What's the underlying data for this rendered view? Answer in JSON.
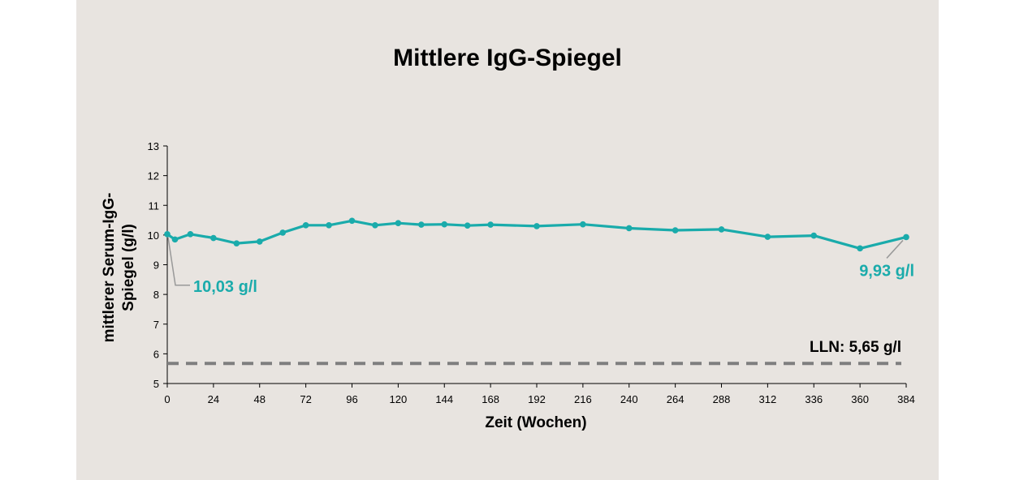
{
  "chart_data": {
    "type": "line",
    "title": "Mittlere IgG-Spiegel",
    "xlabel": "Zeit (Wochen)",
    "ylabel_lines": [
      "mittlerer Serum-IgG-",
      "Spiegel (g/l)"
    ],
    "xlim": [
      0,
      384
    ],
    "ylim": [
      5,
      13
    ],
    "xticks": [
      0,
      24,
      48,
      72,
      96,
      120,
      144,
      168,
      192,
      216,
      240,
      264,
      288,
      312,
      336,
      360,
      384
    ],
    "yticks": [
      5,
      6,
      7,
      8,
      9,
      10,
      11,
      12,
      13
    ],
    "grid": false,
    "series": [
      {
        "color": "#1aabab",
        "x": [
          0,
          4,
          12,
          24,
          36,
          48,
          60,
          72,
          84,
          96,
          108,
          120,
          132,
          144,
          156,
          168,
          192,
          216,
          240,
          264,
          288,
          312,
          336,
          360,
          384
        ],
        "y": [
          10.03,
          9.85,
          10.03,
          9.9,
          9.72,
          9.78,
          10.08,
          10.33,
          10.33,
          10.48,
          10.33,
          10.4,
          10.35,
          10.36,
          10.32,
          10.35,
          10.3,
          10.36,
          10.23,
          10.16,
          10.19,
          9.94,
          9.98,
          9.55,
          9.93
        ]
      }
    ],
    "reference_line": {
      "label": "LLN: 5,65 g/l",
      "value": 5.65,
      "color": "#7f7f7f"
    },
    "annotations": [
      {
        "text": "10,03 g/l",
        "x": 0,
        "y": 10.03
      },
      {
        "text": "9,93 g/l",
        "x": 384,
        "y": 9.93
      }
    ],
    "colors": {
      "background": "#e8e4e0",
      "series": "#1aabab",
      "reference": "#7f7f7f"
    }
  }
}
